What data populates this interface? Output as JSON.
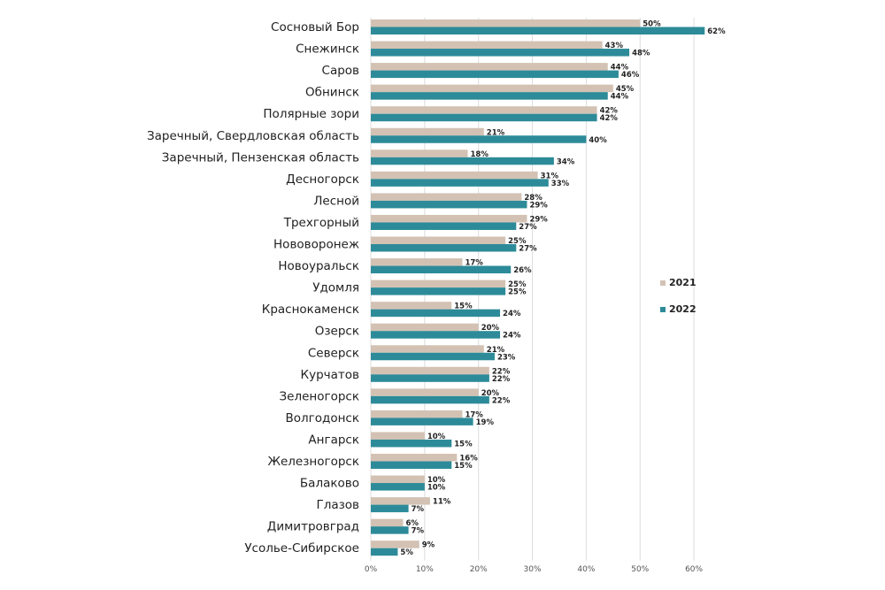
{
  "chart_data": {
    "type": "bar",
    "orientation": "horizontal",
    "categories": [
      "Сосновый Бор",
      "Снежинск",
      "Саров",
      "Обнинск",
      "Полярные зори",
      "Заречный, Свердловская область",
      "Заречный, Пензенская область",
      "Десногорск",
      "Лесной",
      "Трехгорный",
      "Нововоронеж",
      "Новоуральск",
      "Удомля",
      "Краснокаменск",
      "Озерск",
      "Северск",
      "Курчатов",
      "Зеленогорск",
      "Волгодонск",
      "Ангарск",
      "Железногорск",
      "Балаково",
      "Глазов",
      "Димитровград",
      "Усолье-Сибирское"
    ],
    "series": [
      {
        "name": "2021",
        "color": "#d3c2b4",
        "values": [
          50,
          43,
          44,
          45,
          42,
          21,
          18,
          31,
          28,
          29,
          25,
          17,
          25,
          15,
          20,
          21,
          22,
          20,
          17,
          10,
          16,
          10,
          11,
          6,
          9
        ]
      },
      {
        "name": "2022",
        "color": "#2d8b99",
        "values": [
          62,
          48,
          46,
          44,
          42,
          40,
          34,
          33,
          29,
          27,
          27,
          26,
          25,
          24,
          24,
          23,
          22,
          22,
          19,
          15,
          15,
          10,
          7,
          7,
          5
        ]
      }
    ],
    "xlim": [
      0,
      65
    ],
    "x_ticks": [
      "0%",
      "10%",
      "20%",
      "30%",
      "40%",
      "50%",
      "60%"
    ],
    "value_suffix": "%",
    "grid": true,
    "legend": "right"
  }
}
